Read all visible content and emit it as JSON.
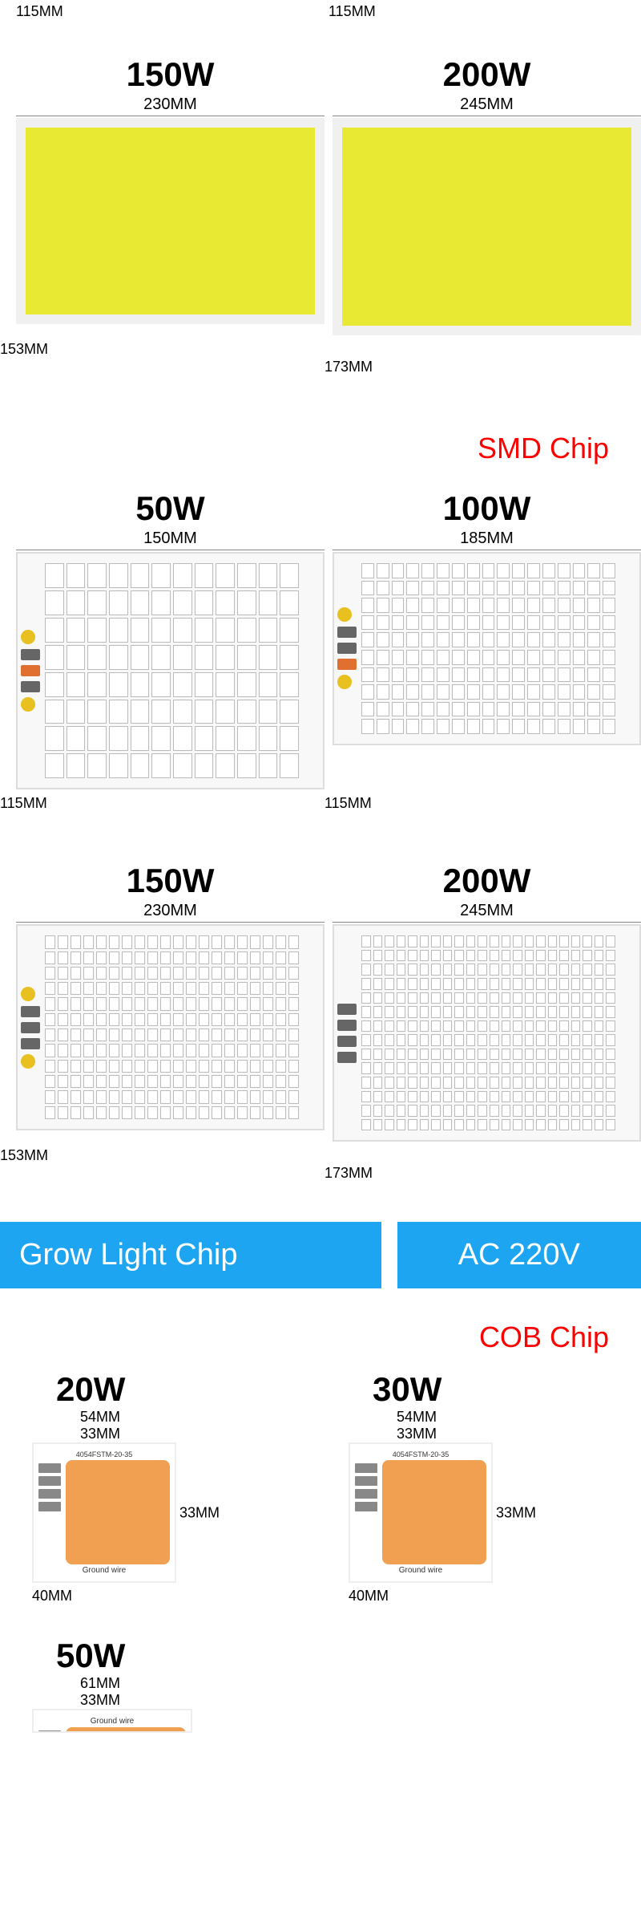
{
  "top_dims": {
    "left": "115MM",
    "right": "115MM"
  },
  "cob_large": [
    {
      "power": "150W",
      "width": "230MM",
      "height": "153MM",
      "chip_color": "#e7e932",
      "border_color": "#f0f0f0",
      "aspect": 1.5
    },
    {
      "power": "200W",
      "width": "245MM",
      "height": "173MM",
      "chip_color": "#e7e932",
      "border_color": "#f0f0f0",
      "aspect": 1.42
    }
  ],
  "smd_title": "SMD Chip",
  "smd_title_color": "#ff0000",
  "smd_chips": [
    {
      "power": "50W",
      "width": "150MM",
      "height": "115MM",
      "rows": 8,
      "cols": 12
    },
    {
      "power": "100W",
      "width": "185MM",
      "height": "115MM",
      "rows": 10,
      "cols": 17
    },
    {
      "power": "150W",
      "width": "230MM",
      "height": "153MM",
      "rows": 12,
      "cols": 20
    },
    {
      "power": "200W",
      "width": "245MM",
      "height": "173MM",
      "rows": 14,
      "cols": 22
    }
  ],
  "smd_board_bg": "#f8f8f8",
  "smd_led_color": "#ffffff",
  "banners": {
    "left": "Grow Light Chip",
    "right": "AC 220V",
    "bg": "#1ea5f2",
    "fg": "#ffffff"
  },
  "cob_title": "COB Chip",
  "cob_title_color": "#ff0000",
  "grow_cobs": [
    {
      "power": "20W",
      "w_out": "54MM",
      "w_in": "33MM",
      "h_in": "33MM",
      "h_out": "40MM",
      "top_text": "4054FSTM-20-35",
      "bottom_text": "Ground wire",
      "chip_color": "#f0a050"
    },
    {
      "power": "30W",
      "w_out": "54MM",
      "w_in": "33MM",
      "h_in": "33MM",
      "h_out": "40MM",
      "top_text": "4054FSTM-20-35",
      "bottom_text": "Ground wire",
      "chip_color": "#f0a050"
    },
    {
      "power": "50W",
      "w_out": "61MM",
      "w_in": "33MM",
      "top_text": "",
      "bottom_text": "Ground wire",
      "chip_color": "#f0a050"
    }
  ]
}
